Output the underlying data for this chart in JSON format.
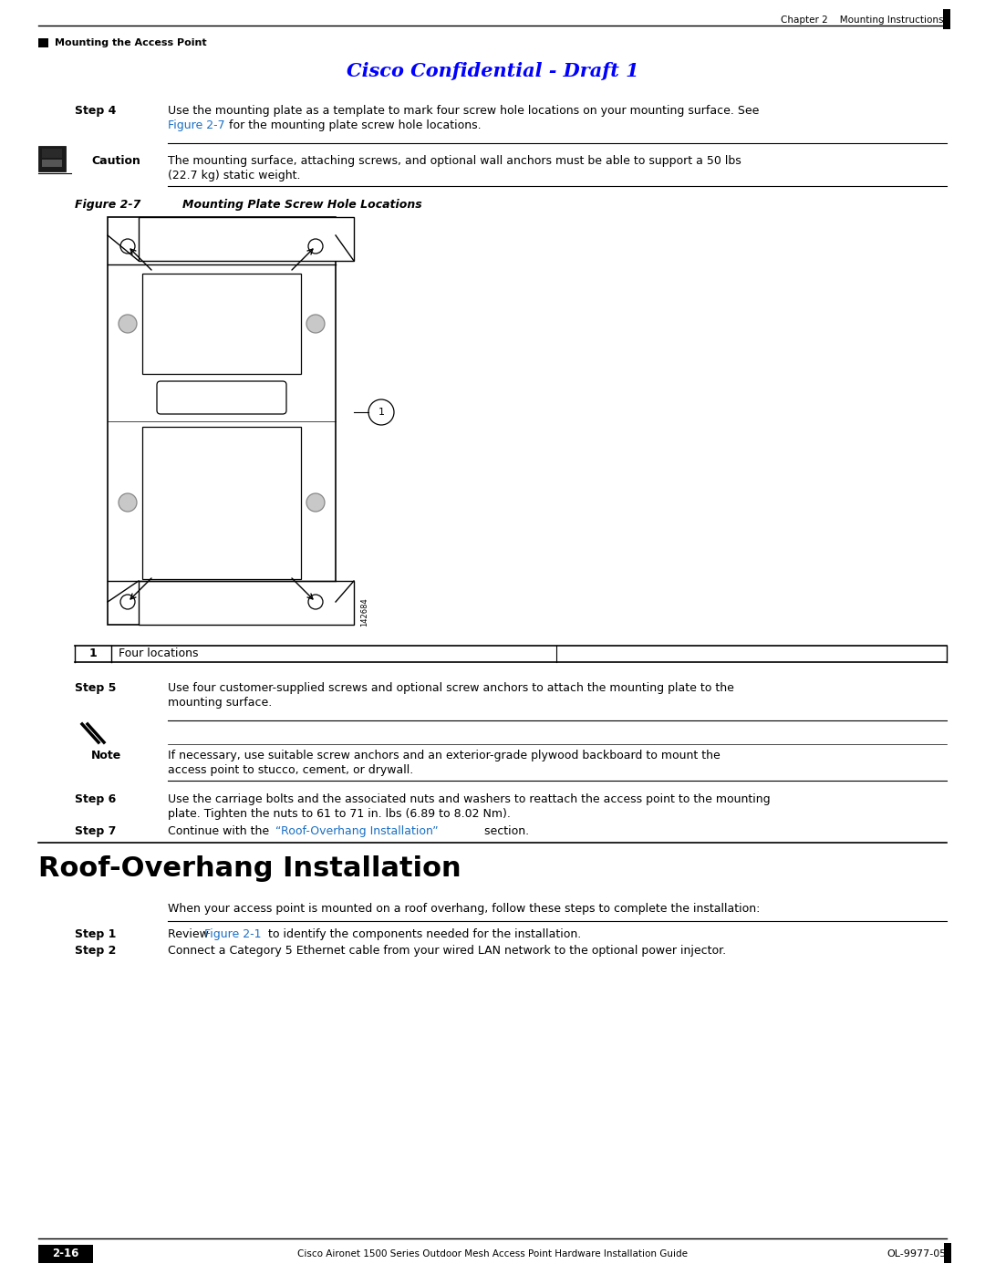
{
  "page_bg": "#ffffff",
  "confidential_color": "#0000ff",
  "link_color": "#1a6fc4",
  "image_number": "142684",
  "footer_page": "2-16",
  "footer_center": "Cisco Aironet 1500 Series Outdoor Mesh Access Point Hardware Installation Guide",
  "footer_right": "OL-9977-05"
}
